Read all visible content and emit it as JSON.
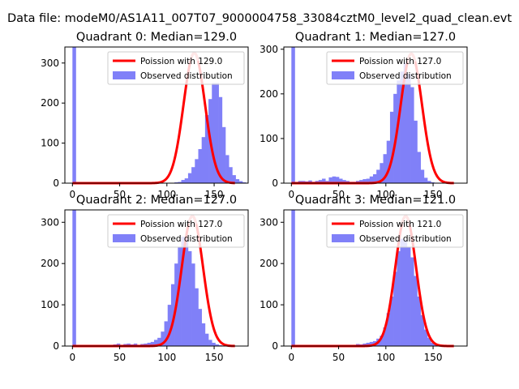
{
  "figure": {
    "suptitle": "Data file: modeM0/AS1A11_007T07_9000004758_33084cztM0_level2_quad_clean.evt"
  },
  "colors": {
    "hist": "#8080f8",
    "fit": "#ff0000",
    "fit_center": "#f88080"
  },
  "chart_data": [
    {
      "type": "bar",
      "title": "Quadrant 0: Median=129.0",
      "median": 129.0,
      "xlim": [
        -8,
        186
      ],
      "ylim": [
        0,
        340
      ],
      "xticks": [
        0,
        50,
        100,
        150
      ],
      "yticks": [
        0,
        100,
        200,
        300
      ],
      "legend": {
        "fit": "Poission with 129.0",
        "observed": "Observed distribution"
      },
      "bin_width": 3.6,
      "bin_start": 0,
      "hist_values": [
        340,
        0,
        0,
        0,
        0,
        0,
        0,
        0,
        0,
        0,
        0,
        0,
        0,
        0,
        0,
        0,
        0,
        0,
        0,
        0,
        0,
        0,
        0,
        0,
        0,
        0,
        0,
        1,
        1,
        1,
        2,
        3,
        8,
        12,
        25,
        40,
        60,
        85,
        115,
        170,
        210,
        250,
        250,
        215,
        140,
        70,
        40,
        20,
        10,
        5,
        2
      ],
      "fit_peak": 325
    },
    {
      "type": "bar",
      "title": "Quadrant 1: Median=127.0",
      "median": 127.0,
      "xlim": [
        -8,
        186
      ],
      "ylim": [
        0,
        305
      ],
      "xticks": [
        0,
        50,
        100,
        150
      ],
      "yticks": [
        0,
        100,
        200,
        300
      ],
      "legend": {
        "fit": "Poission with 127.0",
        "observed": "Observed distribution"
      },
      "bin_width": 3.6,
      "bin_start": 0,
      "hist_values": [
        305,
        0,
        5,
        5,
        4,
        6,
        3,
        5,
        7,
        10,
        5,
        13,
        15,
        14,
        10,
        7,
        5,
        3,
        3,
        5,
        7,
        9,
        10,
        15,
        20,
        30,
        45,
        65,
        95,
        160,
        200,
        230,
        250,
        270,
        245,
        215,
        140,
        70,
        30,
        12,
        5,
        2,
        1,
        1,
        0,
        0,
        0,
        0,
        0,
        0,
        0
      ],
      "fit_peak": 290
    },
    {
      "type": "bar",
      "title": "Quadrant 2: Median=127.0",
      "median": 127.0,
      "xlim": [
        -8,
        186
      ],
      "ylim": [
        0,
        330
      ],
      "xticks": [
        0,
        50,
        100,
        150
      ],
      "yticks": [
        0,
        100,
        200,
        300
      ],
      "legend": {
        "fit": "Poission with 127.0",
        "observed": "Observed distribution"
      },
      "bin_width": 3.6,
      "bin_start": 0,
      "hist_values": [
        330,
        0,
        0,
        0,
        0,
        0,
        0,
        0,
        0,
        0,
        0,
        3,
        4,
        6,
        3,
        5,
        6,
        4,
        6,
        3,
        5,
        6,
        8,
        10,
        15,
        20,
        35,
        60,
        100,
        150,
        200,
        240,
        265,
        260,
        230,
        200,
        140,
        90,
        55,
        30,
        15,
        8,
        4,
        2,
        0,
        0,
        0,
        0,
        0,
        0,
        0
      ],
      "fit_peak": 315
    },
    {
      "type": "bar",
      "title": "Quadrant 3: Median=121.0",
      "median": 121.0,
      "xlim": [
        -8,
        186
      ],
      "ylim": [
        0,
        330
      ],
      "xticks": [
        0,
        50,
        100,
        150
      ],
      "yticks": [
        0,
        100,
        200,
        300
      ],
      "legend": {
        "fit": "Poission with 121.0",
        "observed": "Observed distribution"
      },
      "bin_width": 3.6,
      "bin_start": 0,
      "hist_values": [
        330,
        0,
        0,
        0,
        0,
        0,
        0,
        0,
        0,
        0,
        0,
        0,
        0,
        0,
        0,
        0,
        0,
        0,
        3,
        5,
        4,
        6,
        8,
        10,
        12,
        18,
        25,
        45,
        80,
        120,
        180,
        230,
        260,
        255,
        240,
        215,
        170,
        120,
        75,
        40,
        20,
        8,
        3,
        1,
        0,
        0,
        0,
        0,
        0,
        0,
        0
      ],
      "fit_peak": 315
    }
  ]
}
